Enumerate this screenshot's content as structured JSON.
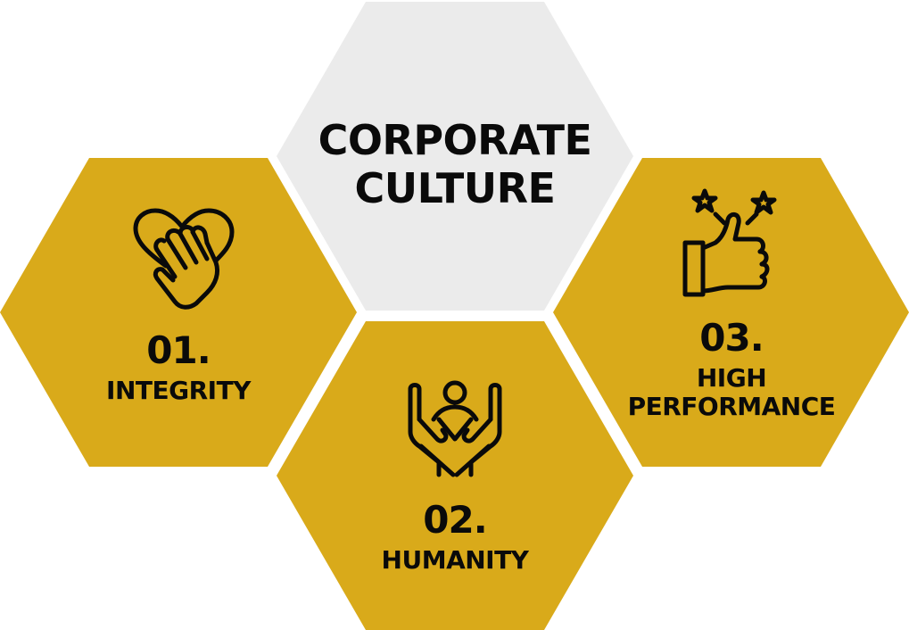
{
  "title": {
    "line1": "CORPORATE",
    "line2": "CULTURE"
  },
  "colors": {
    "accent": "#d9aa1a",
    "center": "#ebebeb",
    "text": "#0a0a0a"
  },
  "values": [
    {
      "number": "01.",
      "name": "INTEGRITY",
      "icon": "heart-hand-icon"
    },
    {
      "number": "02.",
      "name": "HUMANITY",
      "icon": "raised-hands-person-icon"
    },
    {
      "number": "03.",
      "name_line1": "HIGH",
      "name_line2": "PERFORMANCE",
      "icon": "thumbs-up-stars-icon"
    }
  ]
}
